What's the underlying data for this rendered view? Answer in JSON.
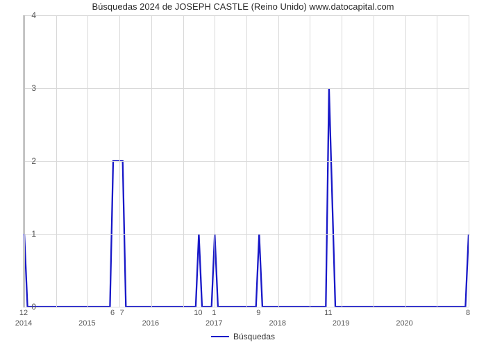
{
  "chart": {
    "type": "line",
    "title": "Búsquedas 2024 de JOSEPH CASTLE (Reino Unido) www.datocapital.com",
    "title_fontsize": 13,
    "background_color": "#ffffff",
    "grid_color": "#d9d9d9",
    "axis_color": "#555555",
    "text_color": "#555555",
    "series_color": "#1818c8",
    "line_width": 2.3,
    "ylim": [
      0,
      4
    ],
    "yticks": [
      0,
      1,
      2,
      3,
      4
    ],
    "xlim": [
      2014,
      2021
    ],
    "xticks": [
      2014,
      2015,
      2016,
      2017,
      2018,
      2019,
      2020
    ],
    "legend": {
      "label": "Búsquedas",
      "position": "bottom-center"
    },
    "data_points": [
      {
        "x": 2014.0,
        "y": 1
      },
      {
        "x": 2014.05,
        "y": 0
      },
      {
        "x": 2015.35,
        "y": 0
      },
      {
        "x": 2015.4,
        "y": 2
      },
      {
        "x": 2015.55,
        "y": 2
      },
      {
        "x": 2015.6,
        "y": 0
      },
      {
        "x": 2016.7,
        "y": 0
      },
      {
        "x": 2016.75,
        "y": 1
      },
      {
        "x": 2016.8,
        "y": 0
      },
      {
        "x": 2016.95,
        "y": 0
      },
      {
        "x": 2017.0,
        "y": 1
      },
      {
        "x": 2017.05,
        "y": 0
      },
      {
        "x": 2017.65,
        "y": 0
      },
      {
        "x": 2017.7,
        "y": 1
      },
      {
        "x": 2017.75,
        "y": 0
      },
      {
        "x": 2018.75,
        "y": 0
      },
      {
        "x": 2018.8,
        "y": 3
      },
      {
        "x": 2018.9,
        "y": 0
      },
      {
        "x": 2020.95,
        "y": 0
      },
      {
        "x": 2021.0,
        "y": 1
      }
    ],
    "data_labels": [
      {
        "x": 2014.0,
        "text": "12"
      },
      {
        "x": 2015.4,
        "text": "6"
      },
      {
        "x": 2015.55,
        "text": "7"
      },
      {
        "x": 2016.75,
        "text": "10"
      },
      {
        "x": 2017.0,
        "text": "1"
      },
      {
        "x": 2017.7,
        "text": "9"
      },
      {
        "x": 2018.8,
        "text": "11"
      },
      {
        "x": 2021.0,
        "text": "8"
      }
    ]
  }
}
